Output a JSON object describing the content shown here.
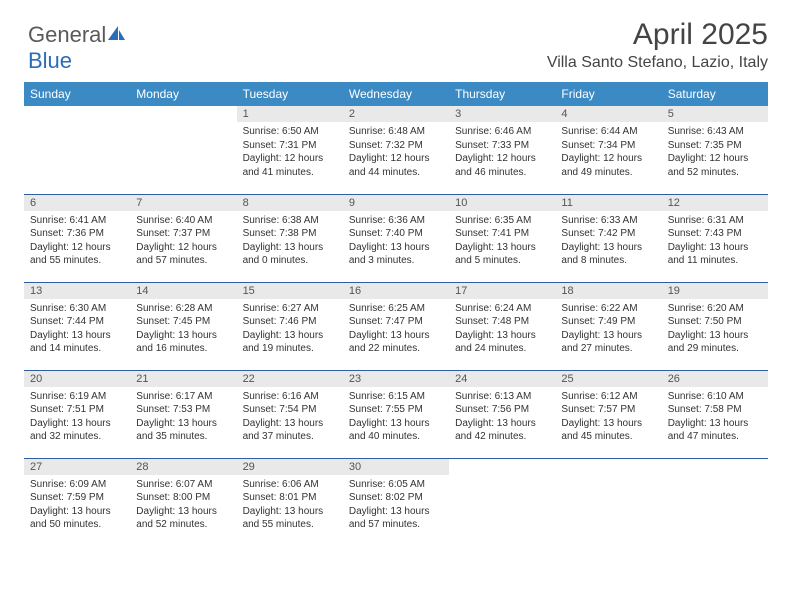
{
  "brand": {
    "part1": "General",
    "part2": "Blue"
  },
  "header": {
    "month_title": "April 2025",
    "location": "Villa Santo Stefano, Lazio, Italy"
  },
  "styling": {
    "header_row_bg": "#3b8ac4",
    "header_row_fg": "#ffffff",
    "daynum_bg": "#e9e9e9",
    "row_divider": "#2f5f9e",
    "page_bg": "#ffffff",
    "text_color": "#333333",
    "title_fontsize": 30,
    "location_fontsize": 16,
    "daynum_fontsize": 11,
    "cell_fontsize": 10
  },
  "day_headers": [
    "Sunday",
    "Monday",
    "Tuesday",
    "Wednesday",
    "Thursday",
    "Friday",
    "Saturday"
  ],
  "days": {
    "1": {
      "sunrise": "6:50 AM",
      "sunset": "7:31 PM",
      "daylight": "12 hours and 41 minutes."
    },
    "2": {
      "sunrise": "6:48 AM",
      "sunset": "7:32 PM",
      "daylight": "12 hours and 44 minutes."
    },
    "3": {
      "sunrise": "6:46 AM",
      "sunset": "7:33 PM",
      "daylight": "12 hours and 46 minutes."
    },
    "4": {
      "sunrise": "6:44 AM",
      "sunset": "7:34 PM",
      "daylight": "12 hours and 49 minutes."
    },
    "5": {
      "sunrise": "6:43 AM",
      "sunset": "7:35 PM",
      "daylight": "12 hours and 52 minutes."
    },
    "6": {
      "sunrise": "6:41 AM",
      "sunset": "7:36 PM",
      "daylight": "12 hours and 55 minutes."
    },
    "7": {
      "sunrise": "6:40 AM",
      "sunset": "7:37 PM",
      "daylight": "12 hours and 57 minutes."
    },
    "8": {
      "sunrise": "6:38 AM",
      "sunset": "7:38 PM",
      "daylight": "13 hours and 0 minutes."
    },
    "9": {
      "sunrise": "6:36 AM",
      "sunset": "7:40 PM",
      "daylight": "13 hours and 3 minutes."
    },
    "10": {
      "sunrise": "6:35 AM",
      "sunset": "7:41 PM",
      "daylight": "13 hours and 5 minutes."
    },
    "11": {
      "sunrise": "6:33 AM",
      "sunset": "7:42 PM",
      "daylight": "13 hours and 8 minutes."
    },
    "12": {
      "sunrise": "6:31 AM",
      "sunset": "7:43 PM",
      "daylight": "13 hours and 11 minutes."
    },
    "13": {
      "sunrise": "6:30 AM",
      "sunset": "7:44 PM",
      "daylight": "13 hours and 14 minutes."
    },
    "14": {
      "sunrise": "6:28 AM",
      "sunset": "7:45 PM",
      "daylight": "13 hours and 16 minutes."
    },
    "15": {
      "sunrise": "6:27 AM",
      "sunset": "7:46 PM",
      "daylight": "13 hours and 19 minutes."
    },
    "16": {
      "sunrise": "6:25 AM",
      "sunset": "7:47 PM",
      "daylight": "13 hours and 22 minutes."
    },
    "17": {
      "sunrise": "6:24 AM",
      "sunset": "7:48 PM",
      "daylight": "13 hours and 24 minutes."
    },
    "18": {
      "sunrise": "6:22 AM",
      "sunset": "7:49 PM",
      "daylight": "13 hours and 27 minutes."
    },
    "19": {
      "sunrise": "6:20 AM",
      "sunset": "7:50 PM",
      "daylight": "13 hours and 29 minutes."
    },
    "20": {
      "sunrise": "6:19 AM",
      "sunset": "7:51 PM",
      "daylight": "13 hours and 32 minutes."
    },
    "21": {
      "sunrise": "6:17 AM",
      "sunset": "7:53 PM",
      "daylight": "13 hours and 35 minutes."
    },
    "22": {
      "sunrise": "6:16 AM",
      "sunset": "7:54 PM",
      "daylight": "13 hours and 37 minutes."
    },
    "23": {
      "sunrise": "6:15 AM",
      "sunset": "7:55 PM",
      "daylight": "13 hours and 40 minutes."
    },
    "24": {
      "sunrise": "6:13 AM",
      "sunset": "7:56 PM",
      "daylight": "13 hours and 42 minutes."
    },
    "25": {
      "sunrise": "6:12 AM",
      "sunset": "7:57 PM",
      "daylight": "13 hours and 45 minutes."
    },
    "26": {
      "sunrise": "6:10 AM",
      "sunset": "7:58 PM",
      "daylight": "13 hours and 47 minutes."
    },
    "27": {
      "sunrise": "6:09 AM",
      "sunset": "7:59 PM",
      "daylight": "13 hours and 50 minutes."
    },
    "28": {
      "sunrise": "6:07 AM",
      "sunset": "8:00 PM",
      "daylight": "13 hours and 52 minutes."
    },
    "29": {
      "sunrise": "6:06 AM",
      "sunset": "8:01 PM",
      "daylight": "13 hours and 55 minutes."
    },
    "30": {
      "sunrise": "6:05 AM",
      "sunset": "8:02 PM",
      "daylight": "13 hours and 57 minutes."
    }
  },
  "grid": [
    [
      null,
      null,
      1,
      2,
      3,
      4,
      5
    ],
    [
      6,
      7,
      8,
      9,
      10,
      11,
      12
    ],
    [
      13,
      14,
      15,
      16,
      17,
      18,
      19
    ],
    [
      20,
      21,
      22,
      23,
      24,
      25,
      26
    ],
    [
      27,
      28,
      29,
      30,
      null,
      null,
      null
    ]
  ],
  "labels": {
    "sunrise_prefix": "Sunrise: ",
    "sunset_prefix": "Sunset: ",
    "daylight_prefix": "Daylight: "
  }
}
